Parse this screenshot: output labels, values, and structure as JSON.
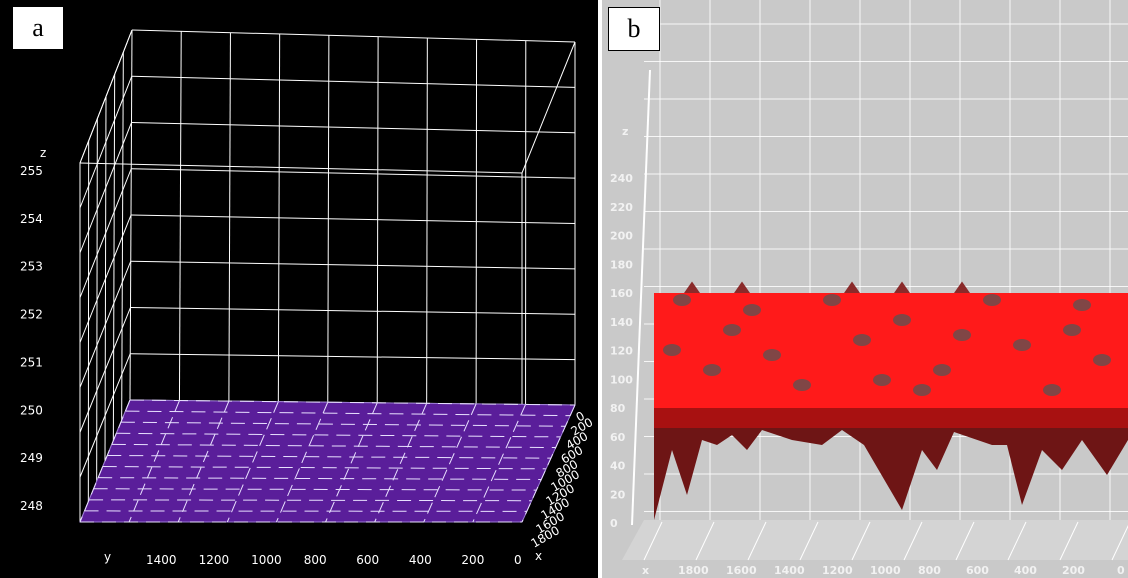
{
  "panels": [
    {
      "label": "a",
      "chart_data": {
        "type": "surface3d",
        "z_label": "z",
        "z_ticks": [
          "255",
          "254",
          "253",
          "252",
          "251",
          "250",
          "249",
          "248"
        ],
        "y_label": "y",
        "y_ticks": [
          "1400",
          "1200",
          "1000",
          "800",
          "600",
          "400",
          "200",
          "0"
        ],
        "x_label": "x",
        "x_ticks": [
          "1800",
          "1600",
          "1400",
          "1200",
          "1000",
          "800",
          "600",
          "400",
          "200",
          "0"
        ],
        "surface_z": 248,
        "surface_color": "#5a1e9a",
        "background": "#000000",
        "grid_color": "#ffffff"
      }
    },
    {
      "label": "b",
      "chart_data": {
        "type": "surface3d",
        "z_label": "z",
        "z_ticks": [
          "240",
          "220",
          "200",
          "180",
          "160",
          "140",
          "120",
          "100",
          "80",
          "60",
          "40",
          "20",
          "0"
        ],
        "x_label": "x",
        "x_ticks": [
          "1800",
          "1600",
          "1400",
          "1200",
          "1000",
          "800",
          "600",
          "400",
          "200",
          "0"
        ],
        "z_range": [
          0,
          255
        ],
        "surface_color": "#ff1a1a",
        "shadow_color": "#555555",
        "background": "#c9c9c9",
        "grid_color": "#ffffff"
      }
    }
  ]
}
